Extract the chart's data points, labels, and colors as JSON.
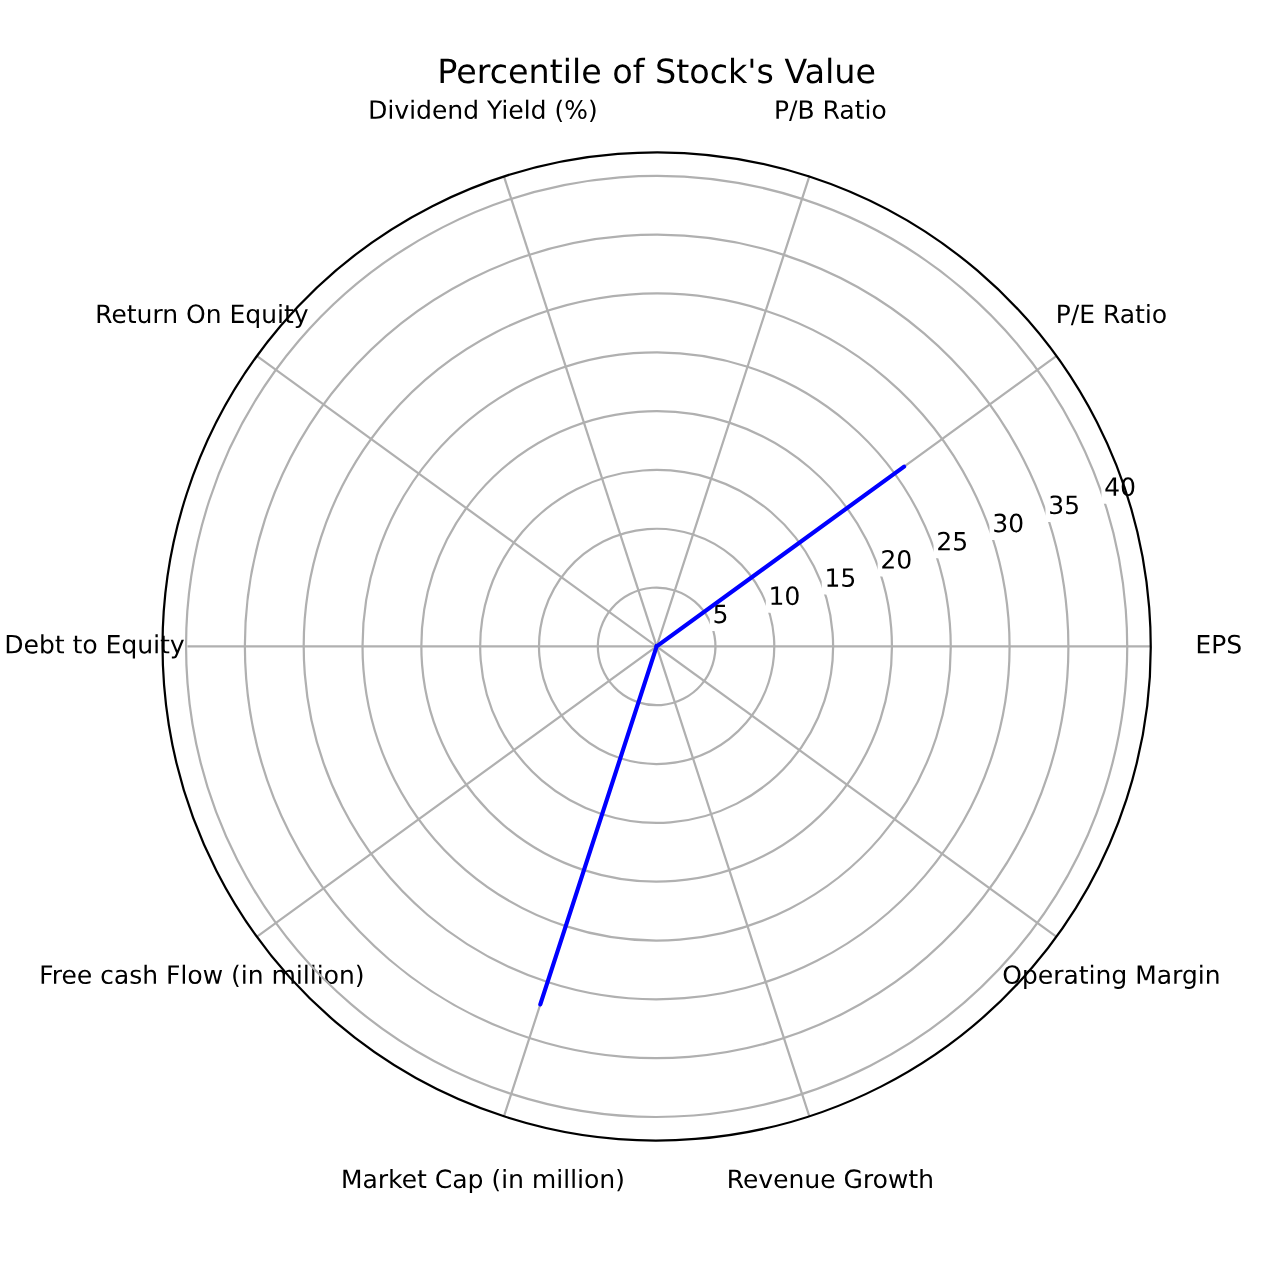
{
  "chart_data": {
    "type": "radar",
    "title": "Percentile of Stock's Value",
    "categories": [
      "P/B Ratio",
      "P/E Ratio",
      "EPS",
      "Operating Margin",
      "Revenue Growth",
      "Market Cap (in million)",
      "Free cash Flow (in million)",
      "Debt to Equity",
      "Return On Equity",
      "Dividend Yield (%)"
    ],
    "series": [
      {
        "color": "#0000ff",
        "values": [
          0,
          26,
          0,
          0,
          0,
          32,
          0,
          0,
          0,
          0
        ]
      }
    ],
    "ylim": [
      0,
      42
    ],
    "yticks": [
      5,
      10,
      15,
      20,
      25,
      30,
      35,
      40
    ],
    "grid": true,
    "marker": "none",
    "line_style": "solid"
  }
}
